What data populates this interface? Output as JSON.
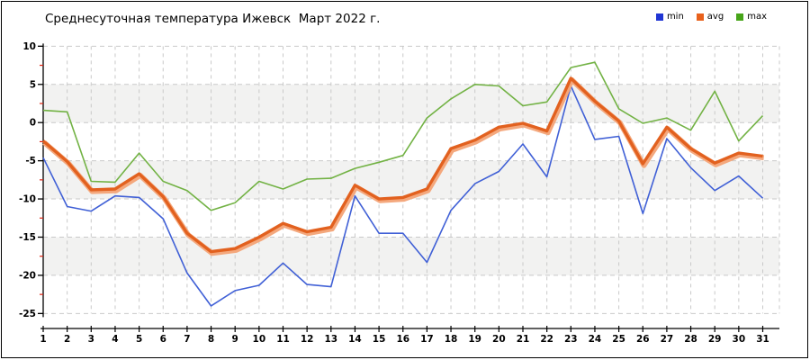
{
  "title": "Среднесуточная температура Ижевск  Март 2022 г.",
  "legend": {
    "items": [
      {
        "label": "min",
        "color": "#2136d4"
      },
      {
        "label": "avg",
        "color": "#e8611c"
      },
      {
        "label": "max",
        "color": "#47a519"
      }
    ],
    "position": "top-right"
  },
  "chart_data": {
    "type": "line",
    "title": "Среднесуточная температура Ижевск  Март 2022 г.",
    "xlabel": "",
    "ylabel": "",
    "x": [
      1,
      2,
      3,
      4,
      5,
      6,
      7,
      8,
      9,
      10,
      11,
      12,
      13,
      14,
      15,
      16,
      17,
      18,
      19,
      20,
      21,
      22,
      23,
      24,
      25,
      26,
      27,
      28,
      29,
      30,
      31
    ],
    "series": [
      {
        "name": "min",
        "color": "#4060d6",
        "line_width": 1.6,
        "values": [
          -4.6,
          -11.0,
          -11.6,
          -9.6,
          -9.8,
          -12.6,
          -19.7,
          -24.0,
          -22.0,
          -21.3,
          -18.4,
          -21.2,
          -21.5,
          -9.6,
          -14.5,
          -14.5,
          -18.3,
          -11.5,
          -8.0,
          -6.4,
          -2.8,
          -7.1,
          4.8,
          -2.2,
          -1.8,
          -11.9,
          -2.1,
          -5.9,
          -8.9,
          -7.0,
          -9.9
        ]
      },
      {
        "name": "avg",
        "color": "#e2611f",
        "halo_color": "#f4a87d",
        "line_width": 3.4,
        "values": [
          -2.4,
          -5.1,
          -8.8,
          -8.7,
          -6.7,
          -9.7,
          -14.5,
          -16.9,
          -16.5,
          -15.0,
          -13.2,
          -14.3,
          -13.7,
          -8.2,
          -10.0,
          -9.8,
          -8.7,
          -3.4,
          -2.3,
          -0.6,
          -0.1,
          -1.1,
          5.8,
          2.8,
          0.2,
          -5.4,
          -0.6,
          -3.4,
          -5.3,
          -4.0,
          -4.4
        ]
      },
      {
        "name": "max",
        "color": "#72b244",
        "line_width": 1.6,
        "values": [
          1.6,
          1.4,
          -7.7,
          -7.8,
          -4.0,
          -7.7,
          -8.9,
          -11.5,
          -10.5,
          -7.7,
          -8.7,
          -7.4,
          -7.3,
          -6.0,
          -5.2,
          -4.3,
          0.6,
          3.1,
          5.0,
          4.8,
          2.2,
          2.7,
          7.2,
          7.9,
          1.8,
          -0.1,
          0.6,
          -1.0,
          4.1,
          -2.4,
          0.9
        ]
      }
    ],
    "ylim": [
      -25,
      10
    ],
    "yticks": [
      10,
      5,
      0,
      -5,
      -10,
      -15,
      -20,
      -25
    ],
    "y_minor_ticks": [
      7.5,
      2.5,
      -2.5,
      -7.5,
      -12.5,
      -17.5,
      -22.5
    ],
    "grid": true,
    "banded_background": true,
    "colors": {
      "grid_line": "#c9c9c9",
      "band_fill": "#f2f2f1",
      "axis": "#000000",
      "minor_tick": "#dd2211",
      "tick_label": "#000000"
    }
  }
}
